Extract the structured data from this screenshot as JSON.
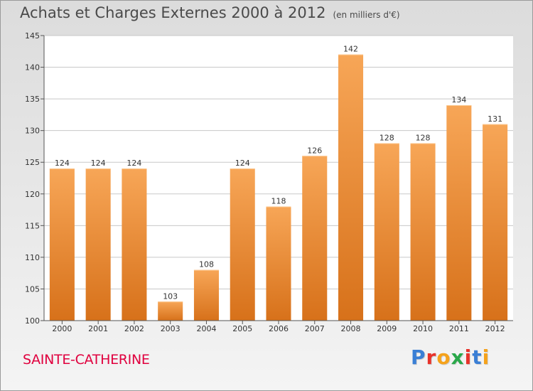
{
  "header": {
    "title": "Achats et Charges Externes 2000 à 2012",
    "unit": "(en milliers d'€)"
  },
  "footer": {
    "town": "SAINTE-CATHERINE",
    "logo": "Proxiti",
    "logo_colors": [
      "#3a7fd5",
      "#e8322a",
      "#f5a21b",
      "#2aa84a",
      "#e8322a",
      "#3a7fd5",
      "#f5a21b"
    ]
  },
  "colors": {
    "bar_top": "#f7a657",
    "bar_bottom": "#d7711a",
    "grid": "#c8c8c8",
    "text": "#333333"
  },
  "chart_data": {
    "type": "bar",
    "categories": [
      "2000",
      "2001",
      "2002",
      "2003",
      "2004",
      "2005",
      "2006",
      "2007",
      "2008",
      "2009",
      "2010",
      "2011",
      "2012"
    ],
    "values": [
      124,
      124,
      124,
      103,
      108,
      124,
      118,
      126,
      142,
      128,
      128,
      134,
      131
    ],
    "title": "Achats et Charges Externes 2000 à 2012",
    "ylim": [
      100,
      145
    ],
    "yticks": [
      100,
      105,
      110,
      115,
      120,
      125,
      130,
      135,
      140,
      145
    ],
    "grid": true,
    "data_labels": true
  }
}
